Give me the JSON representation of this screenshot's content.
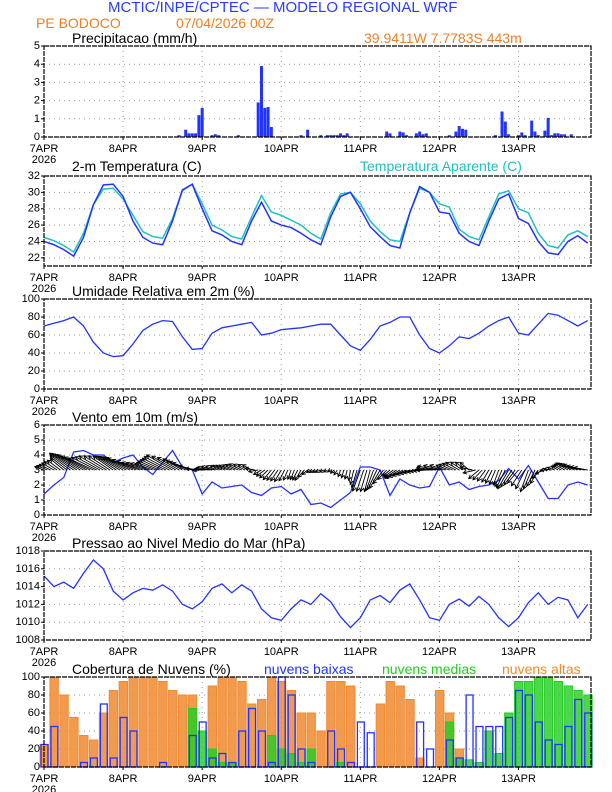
{
  "header": {
    "title": "MCTIC/INPE/CPTEC — MODELO REGIONAL WRF",
    "location": "PE BODOCO",
    "run": "07/04/2026 00Z",
    "coords": "39.9411W 7.7783S 443m",
    "title_color": "#2a3cff",
    "accent_color": "#f07f20"
  },
  "x_axis": {
    "tick_labels": [
      "7APR",
      "8APR",
      "9APR",
      "10APR",
      "11APR",
      "12APR",
      "13APR"
    ],
    "year_label": "2026",
    "hours_span": [
      0,
      166
    ],
    "step_hours": 3
  },
  "chart_data": [
    {
      "type": "bar",
      "title": "Precipitacao (mm/h)",
      "ylim": [
        0,
        5
      ],
      "yticks": [
        0,
        1,
        2,
        3,
        4,
        5
      ],
      "grid": true,
      "color": "#2233ff",
      "hourly_nonzero": [
        [
          41,
          0.1
        ],
        [
          43,
          0.4
        ],
        [
          44,
          0.2
        ],
        [
          45,
          0.2
        ],
        [
          46,
          0.2
        ],
        [
          47,
          1.2
        ],
        [
          48,
          1.6
        ],
        [
          51,
          0.1
        ],
        [
          52,
          0.15
        ],
        [
          53,
          0.1
        ],
        [
          59,
          0.1
        ],
        [
          65,
          1.9
        ],
        [
          66,
          3.9
        ],
        [
          67,
          1.6
        ],
        [
          68,
          1.65
        ],
        [
          69,
          0.55
        ],
        [
          78,
          0.1
        ],
        [
          80,
          0.4
        ],
        [
          84,
          0.1
        ],
        [
          86,
          0.1
        ],
        [
          87,
          0.1
        ],
        [
          88,
          0.1
        ],
        [
          89,
          0.1
        ],
        [
          90,
          0.2
        ],
        [
          91,
          0.1
        ],
        [
          92,
          0.2
        ],
        [
          104,
          0.3
        ],
        [
          105,
          0.2
        ],
        [
          108,
          0.3
        ],
        [
          109,
          0.25
        ],
        [
          110,
          0.1
        ],
        [
          113,
          0.2
        ],
        [
          114,
          0.3
        ],
        [
          115,
          0.15
        ],
        [
          116,
          0.2
        ],
        [
          123,
          0.1
        ],
        [
          125,
          0.3
        ],
        [
          126,
          0.6
        ],
        [
          127,
          0.45
        ],
        [
          128,
          0.4
        ],
        [
          137,
          0.1
        ],
        [
          139,
          1.4
        ],
        [
          140,
          0.85
        ],
        [
          141,
          0.15
        ],
        [
          144,
          0.1
        ],
        [
          145,
          0.25
        ],
        [
          146,
          0.1
        ],
        [
          148,
          0.9
        ],
        [
          149,
          0.3
        ],
        [
          150,
          0.1
        ],
        [
          152,
          0.35
        ],
        [
          153,
          1.05
        ],
        [
          154,
          0.1
        ],
        [
          155,
          0.2
        ],
        [
          156,
          0.2
        ],
        [
          157,
          0.15
        ],
        [
          158,
          0.15
        ],
        [
          160,
          0.15
        ]
      ]
    },
    {
      "type": "line",
      "title": "2-m Temperatura (C)",
      "ylim": [
        21,
        32
      ],
      "yticks": [
        22,
        24,
        26,
        28,
        30,
        32
      ],
      "grid": true,
      "series": [
        {
          "name": "2-m Temperatura (C)",
          "color": "#2233ff",
          "values": [
            24.0,
            23.6,
            23.0,
            22.2,
            24.5,
            28.5,
            30.9,
            31.0,
            29.5,
            26.5,
            24.5,
            23.8,
            23.6,
            26.5,
            30.3,
            31.0,
            28.0,
            25.3,
            24.8,
            24.0,
            23.6,
            26.5,
            28.8,
            26.5,
            26.0,
            25.7,
            25.0,
            24.2,
            23.6,
            27.0,
            29.5,
            30.0,
            28.0,
            25.8,
            24.6,
            23.5,
            23.2,
            27.5,
            30.7,
            30.0,
            27.6,
            27.4,
            25.0,
            24.0,
            23.5,
            26.5,
            29.2,
            29.8,
            26.8,
            26.2,
            24.0,
            22.6,
            22.4,
            24.0,
            24.7,
            23.8
          ]
        },
        {
          "name": "Temperatura Aparente (C)",
          "color": "#20c0c0",
          "values": [
            24.5,
            24.1,
            23.5,
            22.7,
            25.0,
            28.5,
            30.4,
            30.5,
            29.2,
            27.2,
            25.2,
            24.6,
            24.4,
            26.8,
            30.2,
            31.0,
            28.6,
            26.0,
            25.4,
            24.6,
            24.3,
            27.0,
            29.6,
            27.6,
            27.2,
            26.6,
            26.0,
            25.0,
            24.3,
            27.5,
            29.8,
            30.0,
            28.6,
            26.5,
            25.2,
            24.2,
            24.0,
            27.5,
            30.5,
            30.0,
            28.6,
            28.2,
            25.5,
            24.6,
            24.2,
            27.0,
            29.8,
            30.2,
            28.0,
            27.5,
            25.0,
            23.5,
            23.2,
            24.8,
            25.3,
            24.6
          ]
        }
      ]
    },
    {
      "type": "line",
      "title": "Umidade Relativa em 2m (%)",
      "ylim": [
        0,
        100
      ],
      "yticks": [
        0,
        20,
        40,
        60,
        80,
        100
      ],
      "grid": true,
      "color": "#2233ff",
      "values": [
        70,
        73,
        76,
        80,
        70,
        52,
        40,
        36,
        37,
        50,
        65,
        72,
        76,
        75,
        58,
        44,
        45,
        62,
        68,
        70,
        72,
        74,
        60,
        62,
        66,
        67,
        68,
        70,
        72,
        72,
        60,
        48,
        43,
        55,
        70,
        74,
        80,
        80,
        60,
        45,
        40,
        48,
        58,
        56,
        62,
        70,
        76,
        80,
        62,
        60,
        72,
        84,
        82,
        76,
        70,
        76
      ]
    },
    {
      "type": "line",
      "title": "Vento em 10m (m/s)",
      "ylim": [
        0,
        6
      ],
      "yticks": [
        0,
        1,
        2,
        3,
        4,
        5,
        6
      ],
      "grid": true,
      "color": "#2233ff",
      "speed": [
        1.4,
        2.0,
        2.5,
        4.2,
        4.3,
        4.0,
        4.0,
        3.5,
        3.8,
        4.0,
        3.2,
        2.7,
        3.5,
        4.3,
        3.2,
        3.0,
        1.4,
        2.2,
        1.8,
        1.9,
        2.0,
        1.5,
        1.3,
        1.8,
        1.9,
        1.4,
        1.7,
        0.7,
        0.8,
        0.5,
        1.0,
        1.5,
        3.2,
        3.2,
        3.0,
        1.3,
        2.4,
        2.0,
        1.8,
        1.9,
        3.2,
        2.0,
        2.2,
        1.7,
        1.9,
        2.0,
        2.3,
        3.1,
        2.4,
        3.3,
        2.2,
        1.1,
        1.1,
        2.0,
        2.2,
        2.0
      ],
      "direction_deg": [
        110,
        120,
        130,
        125,
        120,
        115,
        120,
        125,
        120,
        115,
        110,
        110,
        115,
        120,
        120,
        110,
        90,
        100,
        110,
        110,
        115,
        120,
        60,
        40,
        30,
        20,
        30,
        60,
        70,
        60,
        20,
        10,
        20,
        15,
        30,
        50,
        60,
        70,
        80,
        90,
        100,
        110,
        120,
        130,
        50,
        30,
        20,
        30,
        40,
        20,
        30,
        90,
        120,
        120,
        110,
        100
      ],
      "arrow_color": "#000000"
    },
    {
      "type": "line",
      "title": "Pressao ao Nivel Medio do Mar (hPa)",
      "ylim": [
        1008,
        1018
      ],
      "yticks": [
        1008,
        1010,
        1012,
        1014,
        1016,
        1018
      ],
      "grid": true,
      "color": "#2233ff",
      "values": [
        1015.2,
        1014.0,
        1014.5,
        1013.8,
        1015.5,
        1017.0,
        1016.0,
        1013.5,
        1012.5,
        1013.3,
        1013.8,
        1013.6,
        1014.2,
        1013.5,
        1012.0,
        1011.5,
        1012.3,
        1013.8,
        1014.3,
        1013.3,
        1014.2,
        1013.5,
        1011.5,
        1010.5,
        1010.2,
        1011.5,
        1012.5,
        1012.0,
        1013.2,
        1012.3,
        1010.6,
        1009.4,
        1010.5,
        1012.5,
        1013.0,
        1012.2,
        1013.6,
        1014.3,
        1012.5,
        1010.5,
        1010.2,
        1012.0,
        1012.6,
        1011.8,
        1012.9,
        1012.0,
        1010.5,
        1009.5,
        1010.5,
        1012.2,
        1013.3,
        1012.0,
        1012.8,
        1012.5,
        1010.5,
        1012.0
      ]
    },
    {
      "type": "bar",
      "title": "Cobertura de Nuvens (%)",
      "ylim": [
        0,
        100
      ],
      "yticks": [
        0,
        20,
        40,
        60,
        80,
        100
      ],
      "grid": true,
      "legend": "top-right",
      "series": [
        {
          "name": "nuvens altas",
          "color": "#f08a30",
          "values": [
            25,
            100,
            80,
            55,
            35,
            30,
            60,
            85,
            95,
            100,
            100,
            100,
            95,
            85,
            80,
            80,
            0,
            90,
            100,
            100,
            95,
            70,
            75,
            100,
            95,
            85,
            60,
            60,
            40,
            95,
            95,
            90,
            0,
            0,
            70,
            95,
            90,
            75,
            10,
            0,
            85,
            60,
            20,
            0,
            0,
            0,
            0,
            0,
            0,
            0,
            0,
            0,
            0,
            0,
            0,
            0
          ]
        },
        {
          "name": "nuvens medias",
          "color": "#22cc22",
          "values": [
            0,
            0,
            0,
            0,
            0,
            0,
            0,
            0,
            0,
            0,
            0,
            0,
            0,
            0,
            0,
            65,
            40,
            20,
            5,
            5,
            0,
            0,
            0,
            35,
            20,
            15,
            5,
            20,
            0,
            0,
            5,
            0,
            0,
            0,
            0,
            0,
            0,
            0,
            0,
            0,
            0,
            50,
            10,
            8,
            5,
            40,
            15,
            60,
            95,
            95,
            100,
            100,
            95,
            90,
            85,
            80
          ]
        },
        {
          "name": "nuvens baixas",
          "color": "#2233ff",
          "values": [
            25,
            45,
            0,
            0,
            5,
            10,
            70,
            10,
            55,
            40,
            0,
            0,
            5,
            0,
            0,
            35,
            50,
            10,
            15,
            5,
            40,
            65,
            40,
            5,
            100,
            80,
            20,
            5,
            0,
            40,
            20,
            5,
            50,
            38,
            0,
            0,
            0,
            0,
            50,
            20,
            0,
            30,
            10,
            80,
            45,
            45,
            45,
            55,
            85,
            80,
            50,
            30,
            25,
            45,
            75,
            60
          ]
        }
      ]
    }
  ]
}
